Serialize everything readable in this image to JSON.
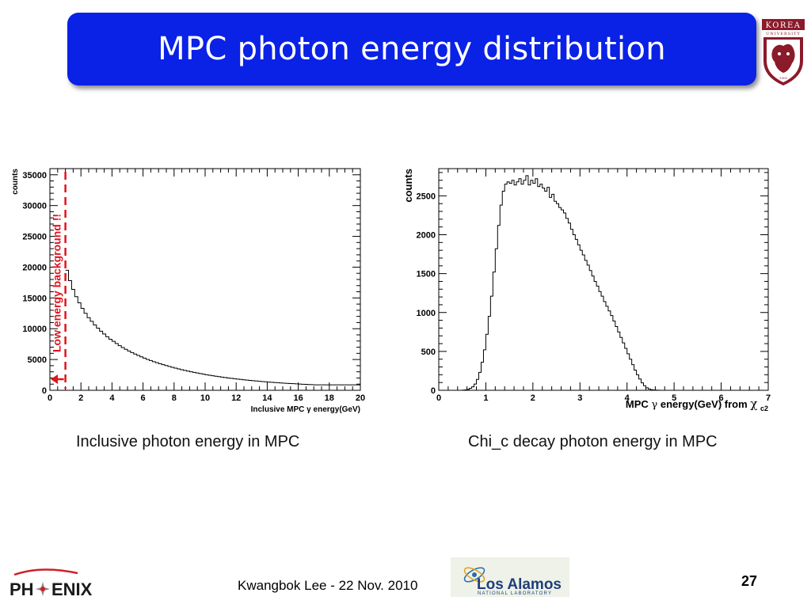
{
  "slide": {
    "title": "MPC photon energy distribution",
    "caption_left": "Inclusive photon energy in MPC",
    "caption_right": "Chi_c decay photon energy in MPC",
    "footer_author": "Kwangbok Lee - 22 Nov. 2010",
    "page_number": "27",
    "logos": {
      "korea_top": "KOREA",
      "korea_sub": "UNIVERSITY",
      "korea_year": "1905",
      "phenix_left": "PH",
      "phenix_right": "ENIX",
      "lanl_main": "Los Alamos",
      "lanl_sub": "NATIONAL LABORATORY"
    },
    "colors": {
      "title_bar": "#0a21e6",
      "korea_crimson": "#8b1a2a",
      "phenix_red": "#d0202a",
      "cut_line": "#e0141e"
    }
  },
  "chart_data": [
    {
      "type": "histogram",
      "xlabel": "Inclusive MPC γ energy(GeV)",
      "ylabel": "counts",
      "xlim": [
        0,
        20
      ],
      "ylim": [
        0,
        36000
      ],
      "x_ticks": [
        0,
        2,
        4,
        6,
        8,
        10,
        12,
        14,
        16,
        18,
        20
      ],
      "y_ticks": [
        0,
        5000,
        10000,
        15000,
        20000,
        25000,
        30000,
        35000
      ],
      "bin_width": 0.2,
      "x_start": 1.0,
      "values": [
        19500,
        17800,
        16400,
        15200,
        14200,
        13300,
        12500,
        11800,
        11200,
        10600,
        10100,
        9600,
        9150,
        8700,
        8300,
        7950,
        7600,
        7250,
        6950,
        6650,
        6380,
        6120,
        5880,
        5650,
        5430,
        5220,
        5020,
        4830,
        4650,
        4480,
        4320,
        4160,
        4010,
        3870,
        3730,
        3600,
        3470,
        3350,
        3230,
        3120,
        3010,
        2910,
        2810,
        2710,
        2620,
        2530,
        2450,
        2370,
        2290,
        2210,
        2140,
        2070,
        2000,
        1940,
        1880,
        1820,
        1760,
        1710,
        1660,
        1610,
        1560,
        1510,
        1470,
        1420,
        1380,
        1340,
        1300,
        1260,
        1230,
        1190,
        1160,
        1130,
        1100,
        1070,
        1040,
        1010,
        985,
        960,
        935,
        910,
        885
      ],
      "annotations": [
        {
          "text": "Low energy background !!",
          "type": "vertical-cut",
          "x": 1.0,
          "color": "#e0141e"
        }
      ]
    },
    {
      "type": "histogram",
      "xlabel": "MPC γ energy(GeV) from χc2",
      "xlabel_main": "MPC",
      "xlabel_gamma": "γ",
      "xlabel_mid": " energy(GeV) from ",
      "xlabel_chi": "χ",
      "xlabel_sub": "c2",
      "ylabel": "counts",
      "xlim": [
        0,
        7
      ],
      "ylim": [
        0,
        2850
      ],
      "x_ticks": [
        0,
        1,
        2,
        3,
        4,
        5,
        6,
        7
      ],
      "y_ticks": [
        0,
        500,
        1000,
        1500,
        2000,
        2500
      ],
      "bin_width": 0.05,
      "x_start": 0.5,
      "values": [
        2,
        5,
        12,
        25,
        45,
        80,
        140,
        230,
        360,
        520,
        720,
        950,
        1210,
        1520,
        1820,
        2120,
        2380,
        2560,
        2650,
        2680,
        2660,
        2700,
        2640,
        2680,
        2720,
        2650,
        2700,
        2760,
        2640,
        2700,
        2660,
        2720,
        2620,
        2650,
        2600,
        2560,
        2610,
        2480,
        2520,
        2430,
        2400,
        2350,
        2320,
        2280,
        2210,
        2150,
        2070,
        2000,
        1940,
        1870,
        1800,
        1740,
        1670,
        1610,
        1540,
        1470,
        1400,
        1340,
        1270,
        1210,
        1140,
        1080,
        1020,
        960,
        890,
        820,
        750,
        680,
        610,
        540,
        470,
        400,
        330,
        260,
        200,
        145,
        95,
        58,
        32,
        16,
        8,
        4,
        2,
        1
      ]
    }
  ]
}
